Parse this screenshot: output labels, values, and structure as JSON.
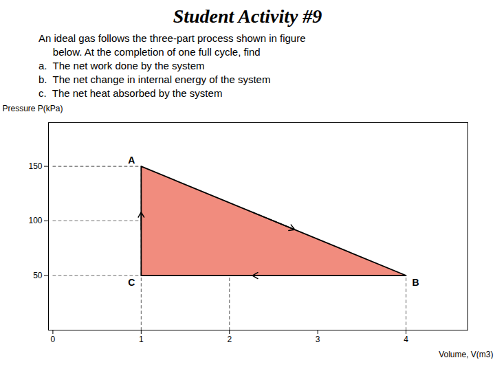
{
  "chart_data": {
    "type": "line",
    "title": "Student Activity #9",
    "annotations": [
      "An ideal gas follows the three-part process shown in figure",
      "     below. At the completion of one full cycle, find",
      "a.  The net work done by the system",
      "b.  The net change in internal energy of the system",
      "c.  The net heat absorbed by the system"
    ],
    "xlabel": "Volume, V(m3)",
    "ylabel": "Pressure P(kPa)",
    "points": [
      {
        "label": "A",
        "x": 1,
        "y": 150
      },
      {
        "label": "B",
        "x": 4,
        "y": 50
      },
      {
        "label": "C",
        "x": 1,
        "y": 50
      }
    ],
    "color": "#f08070",
    "guides": [
      {
        "x": [
          0,
          1
        ],
        "y": [
          150,
          150
        ],
        "line_style": "dashed"
      },
      {
        "x": [
          1,
          1
        ],
        "y": [
          0,
          150
        ],
        "line_style": "dashed"
      },
      {
        "x": [
          0,
          4
        ],
        "y": [
          50,
          50
        ],
        "line_style": "dashed"
      },
      {
        "x": [
          4,
          4
        ],
        "y": [
          0,
          50
        ],
        "line_style": "dashed"
      },
      {
        "x": [
          0,
          1
        ],
        "y": [
          100,
          100
        ],
        "line_style": "dashed"
      },
      {
        "x": [
          2,
          2
        ],
        "y": [
          0,
          50
        ],
        "line_style": "dashed"
      }
    ],
    "xlim": [
      -0.05,
      4.7
    ],
    "ylim": [
      0,
      190
    ],
    "xticks": [
      0,
      1,
      2,
      3,
      4
    ],
    "yticks": [
      50,
      100,
      150
    ]
  }
}
